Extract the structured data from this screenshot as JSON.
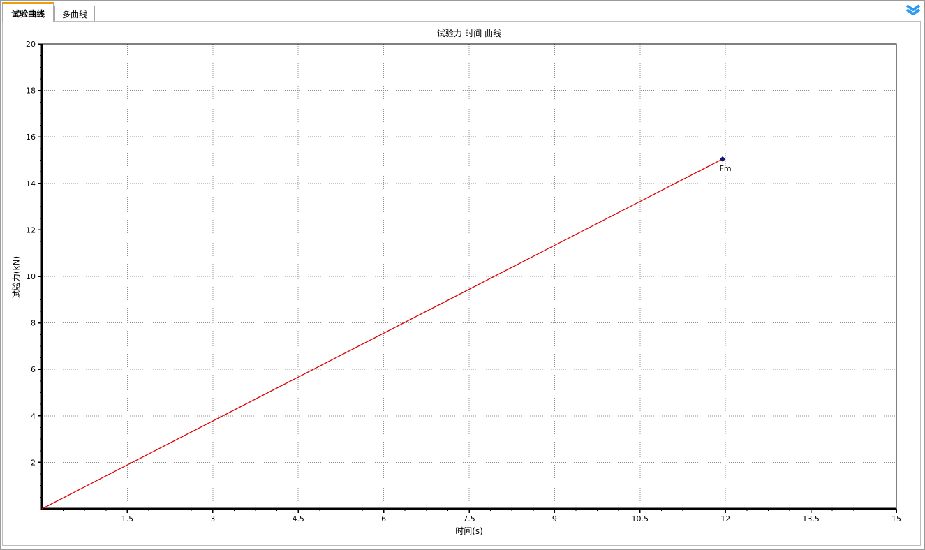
{
  "colors": {
    "tab_accent": "#ee9d0c",
    "chevron_blue": "#2e9bf0",
    "window_border": "#9b9b9b",
    "panel_border": "#bdbdbd"
  },
  "tab_bar": {
    "tabs": [
      {
        "label": "试验曲线",
        "active": true
      },
      {
        "label": "多曲线",
        "active": false
      }
    ]
  },
  "toolbar": {
    "collapse_icon": "double-chevron-down"
  },
  "chart_data": {
    "type": "line",
    "title": "试验力-时间 曲线",
    "xlabel": "时间(s)",
    "ylabel": "试验力(kN)",
    "xlim": [
      0,
      15
    ],
    "ylim": [
      0,
      20
    ],
    "x_ticks": [
      1.5,
      3,
      4.5,
      6,
      7.5,
      9,
      10.5,
      12,
      13.5,
      15
    ],
    "x_tick_labels": [
      "1.5",
      "3",
      "4.5",
      "6",
      "7.5",
      "9",
      "10.5",
      "12",
      "13.5",
      "15"
    ],
    "y_ticks": [
      2,
      4,
      6,
      8,
      10,
      12,
      14,
      16,
      18,
      20
    ],
    "y_tick_labels": [
      "2",
      "4",
      "6",
      "8",
      "10",
      "12",
      "14",
      "16",
      "18",
      "20"
    ],
    "x_minor_step": 0.375,
    "y_minor_step": 0.5,
    "grid": "dotted",
    "grid_color": "#8f8f8f",
    "axis_color": "#000000",
    "series": [
      {
        "name": "试验力",
        "color": "#dd0000",
        "points": [
          [
            0,
            0
          ],
          [
            11.95,
            15.05
          ]
        ]
      }
    ],
    "annotations": [
      {
        "text": "Fm",
        "x": 11.95,
        "y": 15.05,
        "marker": "diamond",
        "marker_color": "#15157d",
        "text_color": "#3434cf"
      }
    ]
  }
}
